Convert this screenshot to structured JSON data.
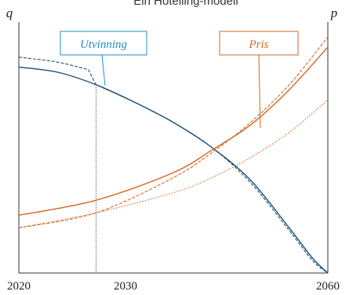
{
  "chart_data": {
    "type": "line",
    "title": "Ein Hotelling-modell",
    "ylabel_left": "q",
    "ylabel_right": "p",
    "xlim": [
      2020,
      2060
    ],
    "ylim": [
      0,
      1
    ],
    "x_ticks": [
      "2020",
      "2030",
      "2060"
    ],
    "grid": false,
    "reference_line_x": 2030,
    "colors": {
      "extraction": "#1b4f72",
      "price": "#d4661f"
    },
    "annotations": [
      {
        "text": "Utvinning",
        "color": "#1f8fbf",
        "points_to": "extraction"
      },
      {
        "text": "Pris",
        "color": "#d4661f",
        "points_to": "price"
      }
    ],
    "series": [
      {
        "id": "extraction_base",
        "color": "#1b4f72",
        "style": "solid",
        "axis": "left",
        "x": [
          2020,
          2025,
          2030,
          2035,
          2040,
          2045,
          2050,
          2055,
          2058,
          2060
        ],
        "y": [
          0.82,
          0.8,
          0.75,
          0.68,
          0.6,
          0.5,
          0.37,
          0.18,
          0.06,
          0.0
        ]
      },
      {
        "id": "extraction_shift",
        "color": "#1b4f72",
        "style": "dashed",
        "axis": "left",
        "x": [
          2020,
          2025,
          2029,
          2030,
          2035,
          2040,
          2045,
          2050,
          2055,
          2058,
          2060
        ],
        "y": [
          0.86,
          0.84,
          0.81,
          0.75,
          0.68,
          0.6,
          0.5,
          0.36,
          0.17,
          0.05,
          0.0
        ]
      },
      {
        "id": "price_base",
        "color": "#d4661f",
        "style": "solid",
        "axis": "right",
        "x": [
          2020,
          2030,
          2040,
          2045,
          2050,
          2055,
          2060
        ],
        "y": [
          0.23,
          0.29,
          0.4,
          0.49,
          0.59,
          0.73,
          0.9
        ]
      },
      {
        "id": "price_shift_future",
        "color": "#d4661f",
        "style": "dashed",
        "axis": "right",
        "x": [
          2020,
          2030,
          2040,
          2045,
          2050,
          2055,
          2060
        ],
        "y": [
          0.18,
          0.24,
          0.38,
          0.48,
          0.6,
          0.75,
          0.94
        ]
      },
      {
        "id": "price_shift_low",
        "color": "#d4661f",
        "style": "dotted",
        "axis": "right",
        "x": [
          2020,
          2030,
          2040,
          2045,
          2050,
          2055,
          2060
        ],
        "y": [
          0.18,
          0.24,
          0.32,
          0.38,
          0.46,
          0.56,
          0.69
        ]
      }
    ]
  }
}
